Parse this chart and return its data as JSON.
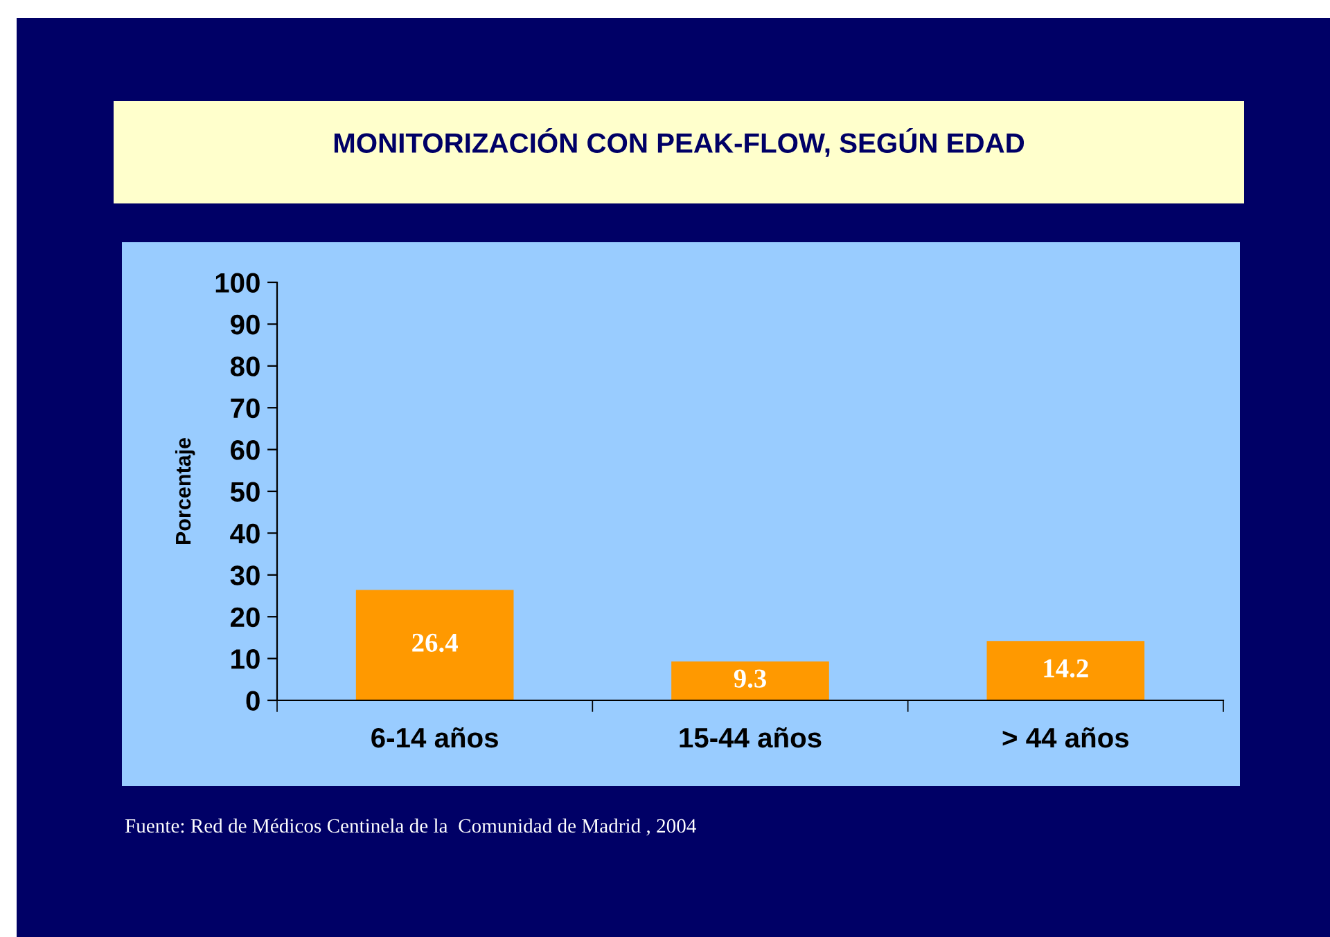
{
  "chart_data": {
    "type": "bar",
    "title": "MONITORIZACIÓN CON PEAK-FLOW, SEGÚN EDAD",
    "ylabel": "Porcentaje",
    "categories": [
      "6-14 años",
      "15-44 años",
      "> 44 años"
    ],
    "values": [
      26.4,
      9.3,
      14.2
    ],
    "color": "#ff9900",
    "ylim": [
      0,
      100
    ],
    "yticks": [
      0,
      10,
      20,
      30,
      40,
      50,
      60,
      70,
      80,
      90,
      100
    ],
    "grid": false,
    "data_labels": true,
    "annotations": [
      "Fuente: Red de Médicos Centinela de la  Comunidad de Madrid , 2004"
    ]
  }
}
